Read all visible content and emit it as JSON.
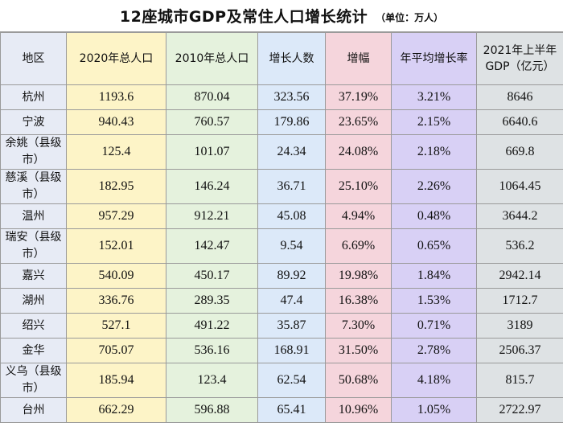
{
  "title": "12座城市GDP及常住人口增长统计",
  "unit": "（单位：万人）",
  "headers": [
    "地区",
    "2020年总人口",
    "2010年总人口",
    "增长人数",
    "增幅",
    "年平均增长率",
    "2021年上半年GDP（亿元）"
  ],
  "rows": [
    {
      "region": "杭州",
      "pop2020": "1193.6",
      "pop2010": "870.04",
      "growth": "323.56",
      "increase": "37.19%",
      "annual_rate": "3.21%",
      "gdp": "8646"
    },
    {
      "region": "宁波",
      "pop2020": "940.43",
      "pop2010": "760.57",
      "growth": "179.86",
      "increase": "23.65%",
      "annual_rate": "2.15%",
      "gdp": "6640.6"
    },
    {
      "region": "余姚（县级市）",
      "pop2020": "125.4",
      "pop2010": "101.07",
      "growth": "24.34",
      "increase": "24.08%",
      "annual_rate": "2.18%",
      "gdp": "669.8"
    },
    {
      "region": "慈溪（县级市）",
      "pop2020": "182.95",
      "pop2010": "146.24",
      "growth": "36.71",
      "increase": "25.10%",
      "annual_rate": "2.26%",
      "gdp": "1064.45"
    },
    {
      "region": "温州",
      "pop2020": "957.29",
      "pop2010": "912.21",
      "growth": "45.08",
      "increase": "4.94%",
      "annual_rate": "0.48%",
      "gdp": "3644.2"
    },
    {
      "region": "瑞安（县级市）",
      "pop2020": "152.01",
      "pop2010": "142.47",
      "growth": "9.54",
      "increase": "6.69%",
      "annual_rate": "0.65%",
      "gdp": "536.2"
    },
    {
      "region": "嘉兴",
      "pop2020": "540.09",
      "pop2010": "450.17",
      "growth": "89.92",
      "increase": "19.98%",
      "annual_rate": "1.84%",
      "gdp": "2942.14"
    },
    {
      "region": "湖州",
      "pop2020": "336.76",
      "pop2010": "289.35",
      "growth": "47.4",
      "increase": "16.38%",
      "annual_rate": "1.53%",
      "gdp": "1712.7"
    },
    {
      "region": "绍兴",
      "pop2020": "527.1",
      "pop2010": "491.22",
      "growth": "35.87",
      "increase": "7.30%",
      "annual_rate": "0.71%",
      "gdp": "3189"
    },
    {
      "region": "金华",
      "pop2020": "705.07",
      "pop2010": "536.16",
      "growth": "168.91",
      "increase": "31.50%",
      "annual_rate": "2.78%",
      "gdp": "2506.37"
    },
    {
      "region": "义乌（县级市）",
      "pop2020": "185.94",
      "pop2010": "123.4",
      "growth": "62.54",
      "increase": "50.68%",
      "annual_rate": "4.18%",
      "gdp": "815.7"
    },
    {
      "region": "台州",
      "pop2020": "662.29",
      "pop2010": "596.88",
      "growth": "65.41",
      "increase": "10.96%",
      "annual_rate": "1.05%",
      "gdp": "2722.97"
    }
  ],
  "column_colors": [
    "#e7ebf5",
    "#fdf4c7",
    "#e5f2dd",
    "#dce9f9",
    "#f5d5dc",
    "#d8d0f5",
    "#dee2e4"
  ]
}
